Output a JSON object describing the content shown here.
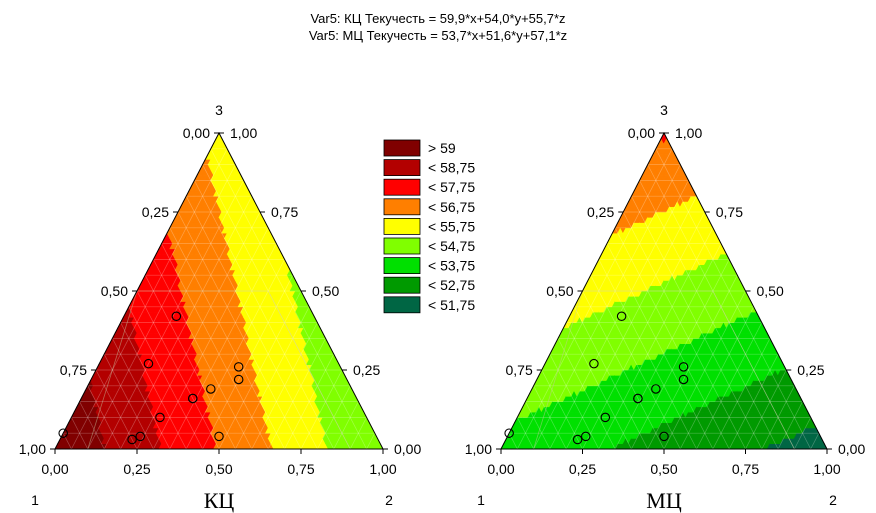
{
  "titles": [
    "Var5: КЦ Текучесть = 59,9*x+54,0*y+55,7*z",
    "Var5: МЦ Текучесть = 53,7*x+51,6*y+57,1*z"
  ],
  "chart_data": [
    {
      "type": "ternary-contour",
      "title": "Var5: КЦ Текучесть = 59,9*x+54,0*y+55,7*z",
      "model": {
        "x": 59.9,
        "y": 54.0,
        "z": 55.7
      },
      "xlabel": "КЦ",
      "vertex_labels": [
        "1",
        "2",
        "3"
      ],
      "tick_labels": [
        "0,00",
        "0,25",
        "0,50",
        "0,75",
        "1,00"
      ],
      "points": [
        {
          "x": 0.95,
          "y": 0.0,
          "z": 0.05
        },
        {
          "x": 0.75,
          "y": 0.22,
          "z": 0.03
        },
        {
          "x": 0.72,
          "y": 0.24,
          "z": 0.04
        },
        {
          "x": 0.63,
          "y": 0.27,
          "z": 0.1
        },
        {
          "x": 0.48,
          "y": 0.48,
          "z": 0.04
        },
        {
          "x": 0.58,
          "y": 0.15,
          "z": 0.27
        },
        {
          "x": 0.5,
          "y": 0.34,
          "z": 0.16
        },
        {
          "x": 0.5,
          "y": 0.34,
          "z": 0.16
        },
        {
          "x": 0.43,
          "y": 0.38,
          "z": 0.19
        },
        {
          "x": 0.42,
          "y": 0.16,
          "z": 0.42
        },
        {
          "x": 0.33,
          "y": 0.45,
          "z": 0.22
        },
        {
          "x": 0.31,
          "y": 0.43,
          "z": 0.26
        }
      ]
    },
    {
      "type": "ternary-contour",
      "title": "Var5: МЦ Текучесть = 53,7*x+51,6*y+57,1*z",
      "model": {
        "x": 53.7,
        "y": 51.6,
        "z": 57.1
      },
      "xlabel": "МЦ",
      "vertex_labels": [
        "1",
        "2",
        "3"
      ],
      "tick_labels": [
        "0,00",
        "0,25",
        "0,50",
        "0,75",
        "1,00"
      ],
      "points": [
        {
          "x": 0.95,
          "y": 0.0,
          "z": 0.05
        },
        {
          "x": 0.75,
          "y": 0.22,
          "z": 0.03
        },
        {
          "x": 0.72,
          "y": 0.24,
          "z": 0.04
        },
        {
          "x": 0.63,
          "y": 0.27,
          "z": 0.1
        },
        {
          "x": 0.48,
          "y": 0.48,
          "z": 0.04
        },
        {
          "x": 0.58,
          "y": 0.15,
          "z": 0.27
        },
        {
          "x": 0.5,
          "y": 0.34,
          "z": 0.16
        },
        {
          "x": 0.5,
          "y": 0.34,
          "z": 0.16
        },
        {
          "x": 0.43,
          "y": 0.38,
          "z": 0.19
        },
        {
          "x": 0.42,
          "y": 0.16,
          "z": 0.42
        },
        {
          "x": 0.33,
          "y": 0.45,
          "z": 0.22
        },
        {
          "x": 0.31,
          "y": 0.43,
          "z": 0.26
        }
      ]
    }
  ],
  "legend": [
    {
      "label": "> 59",
      "min": 59,
      "color": "#800000"
    },
    {
      "label": "< 58,75",
      "min": 58,
      "color": "#b30000"
    },
    {
      "label": "< 57,75",
      "min": 57,
      "color": "#ff0000"
    },
    {
      "label": "< 56,75",
      "min": 56,
      "color": "#ff7f00"
    },
    {
      "label": "< 55,75",
      "min": 55,
      "color": "#ffff00"
    },
    {
      "label": "< 54,75",
      "min": 54,
      "color": "#80ff00"
    },
    {
      "label": "< 53,75",
      "min": 53,
      "color": "#00e000"
    },
    {
      "label": "< 52,75",
      "min": 52,
      "color": "#009a00"
    },
    {
      "label": "< 51,75",
      "min": -1000,
      "color": "#006644"
    }
  ]
}
